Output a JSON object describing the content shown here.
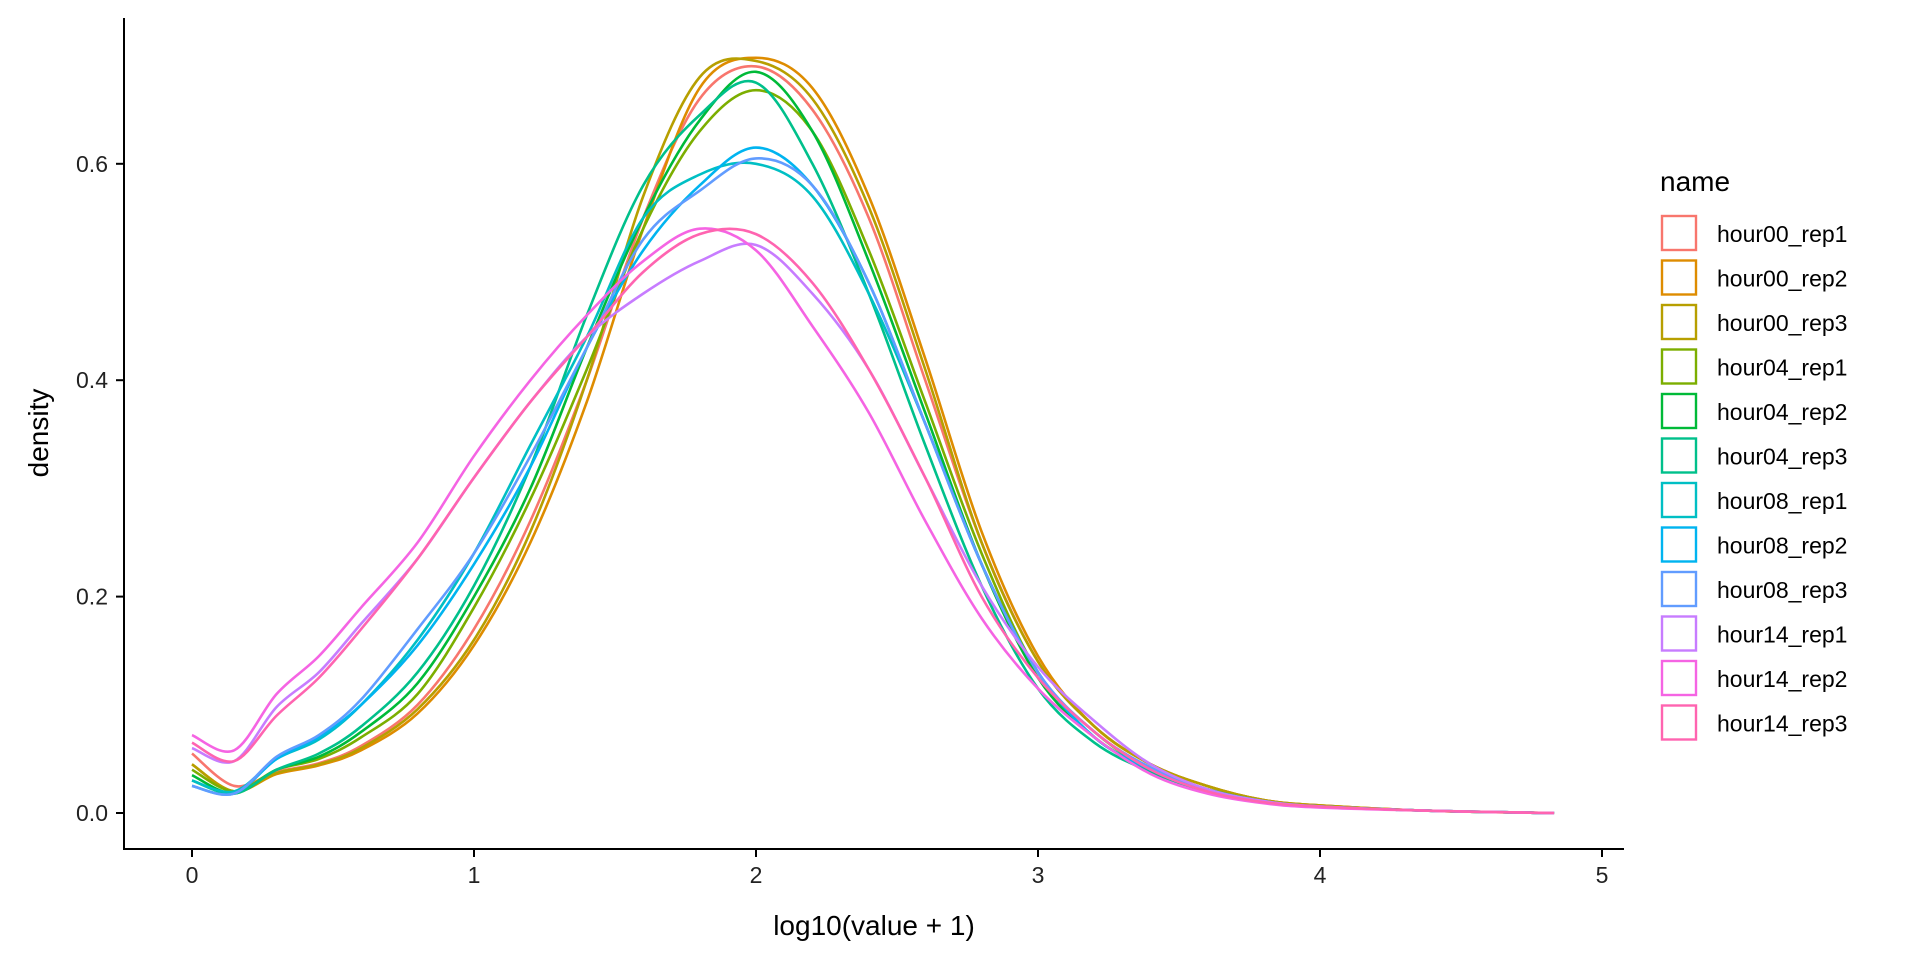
{
  "chart_data": {
    "type": "line",
    "subtype": "density",
    "title": "",
    "xlabel": "log10(value + 1)",
    "ylabel": "density",
    "xlim": [
      -0.25,
      5.05
    ],
    "ylim": [
      -0.04,
      0.74
    ],
    "xticks": [
      0,
      1,
      2,
      3,
      4,
      5
    ],
    "xtick_labels": [
      "0",
      "1",
      "2",
      "3",
      "4",
      "5"
    ],
    "yticks": [
      0.0,
      0.2,
      0.4,
      0.6
    ],
    "ytick_labels": [
      "0.0",
      "0.2",
      "0.4",
      "0.6"
    ],
    "grid": false,
    "legend_title": "name",
    "legend_position": "right",
    "x": [
      0,
      0.15,
      0.3,
      0.45,
      0.6,
      0.8,
      1.0,
      1.2,
      1.4,
      1.6,
      1.8,
      2.0,
      2.2,
      2.4,
      2.6,
      2.8,
      3.0,
      3.2,
      3.4,
      3.6,
      3.8,
      4.0,
      4.4,
      4.83
    ],
    "series": [
      {
        "name": "hour00_rep1",
        "color": "#F8766D",
        "values": [
          0.055,
          0.025,
          0.038,
          0.046,
          0.062,
          0.1,
          0.17,
          0.27,
          0.4,
          0.55,
          0.66,
          0.69,
          0.65,
          0.55,
          0.4,
          0.25,
          0.14,
          0.08,
          0.045,
          0.025,
          0.012,
          0.007,
          0.002,
          0.0
        ]
      },
      {
        "name": "hour00_rep2",
        "color": "#DE8C00",
        "values": [
          0.045,
          0.02,
          0.036,
          0.044,
          0.058,
          0.092,
          0.155,
          0.25,
          0.38,
          0.54,
          0.67,
          0.698,
          0.67,
          0.57,
          0.42,
          0.26,
          0.145,
          0.08,
          0.045,
          0.025,
          0.012,
          0.007,
          0.002,
          0.0
        ]
      },
      {
        "name": "hour00_rep3",
        "color": "#B79F00",
        "values": [
          0.045,
          0.02,
          0.037,
          0.045,
          0.06,
          0.096,
          0.16,
          0.26,
          0.4,
          0.57,
          0.68,
          0.695,
          0.66,
          0.56,
          0.41,
          0.25,
          0.14,
          0.08,
          0.045,
          0.025,
          0.012,
          0.007,
          0.002,
          0.0
        ]
      },
      {
        "name": "hour04_rep1",
        "color": "#7CAE00",
        "values": [
          0.04,
          0.02,
          0.04,
          0.05,
          0.07,
          0.11,
          0.19,
          0.29,
          0.41,
          0.54,
          0.63,
          0.668,
          0.63,
          0.52,
          0.38,
          0.24,
          0.13,
          0.075,
          0.04,
          0.022,
          0.011,
          0.006,
          0.002,
          0.0
        ]
      },
      {
        "name": "hour04_rep2",
        "color": "#00BA38",
        "values": [
          0.035,
          0.018,
          0.04,
          0.052,
          0.075,
          0.12,
          0.2,
          0.3,
          0.43,
          0.55,
          0.64,
          0.685,
          0.63,
          0.51,
          0.37,
          0.23,
          0.125,
          0.07,
          0.04,
          0.022,
          0.011,
          0.006,
          0.002,
          0.0
        ]
      },
      {
        "name": "hour04_rep3",
        "color": "#00C08B",
        "values": [
          0.03,
          0.018,
          0.04,
          0.055,
          0.08,
          0.13,
          0.21,
          0.32,
          0.46,
          0.58,
          0.645,
          0.675,
          0.6,
          0.48,
          0.34,
          0.21,
          0.115,
          0.065,
          0.038,
          0.02,
          0.01,
          0.006,
          0.002,
          0.0
        ]
      },
      {
        "name": "hour08_rep1",
        "color": "#00BFC4",
        "values": [
          0.03,
          0.02,
          0.05,
          0.068,
          0.1,
          0.16,
          0.24,
          0.34,
          0.44,
          0.55,
          0.59,
          0.6,
          0.57,
          0.48,
          0.36,
          0.23,
          0.13,
          0.07,
          0.04,
          0.02,
          0.01,
          0.006,
          0.002,
          0.0
        ]
      },
      {
        "name": "hour08_rep2",
        "color": "#00B4F0",
        "values": [
          0.025,
          0.018,
          0.05,
          0.07,
          0.1,
          0.155,
          0.23,
          0.32,
          0.43,
          0.52,
          0.58,
          0.615,
          0.58,
          0.49,
          0.36,
          0.23,
          0.13,
          0.07,
          0.04,
          0.02,
          0.01,
          0.006,
          0.002,
          0.0
        ]
      },
      {
        "name": "hour08_rep3",
        "color": "#619CFF",
        "values": [
          0.025,
          0.018,
          0.052,
          0.072,
          0.105,
          0.17,
          0.24,
          0.33,
          0.43,
          0.53,
          0.575,
          0.605,
          0.58,
          0.49,
          0.36,
          0.23,
          0.13,
          0.075,
          0.042,
          0.022,
          0.011,
          0.006,
          0.002,
          0.0
        ]
      },
      {
        "name": "hour14_rep1",
        "color": "#C77CFF",
        "values": [
          0.06,
          0.048,
          0.098,
          0.13,
          0.175,
          0.235,
          0.31,
          0.38,
          0.44,
          0.48,
          0.51,
          0.525,
          0.48,
          0.41,
          0.31,
          0.21,
          0.135,
          0.085,
          0.045,
          0.022,
          0.011,
          0.006,
          0.002,
          0.0
        ]
      },
      {
        "name": "hour14_rep2",
        "color": "#F564E3",
        "values": [
          0.072,
          0.058,
          0.11,
          0.145,
          0.19,
          0.25,
          0.33,
          0.4,
          0.46,
          0.51,
          0.54,
          0.52,
          0.45,
          0.37,
          0.27,
          0.18,
          0.115,
          0.07,
          0.036,
          0.018,
          0.009,
          0.005,
          0.002,
          0.0
        ]
      },
      {
        "name": "hour14_rep3",
        "color": "#FF64B0",
        "values": [
          0.065,
          0.048,
          0.09,
          0.125,
          0.17,
          0.235,
          0.31,
          0.38,
          0.44,
          0.5,
          0.535,
          0.535,
          0.49,
          0.41,
          0.31,
          0.2,
          0.125,
          0.075,
          0.04,
          0.02,
          0.01,
          0.006,
          0.002,
          0.0
        ]
      }
    ]
  }
}
